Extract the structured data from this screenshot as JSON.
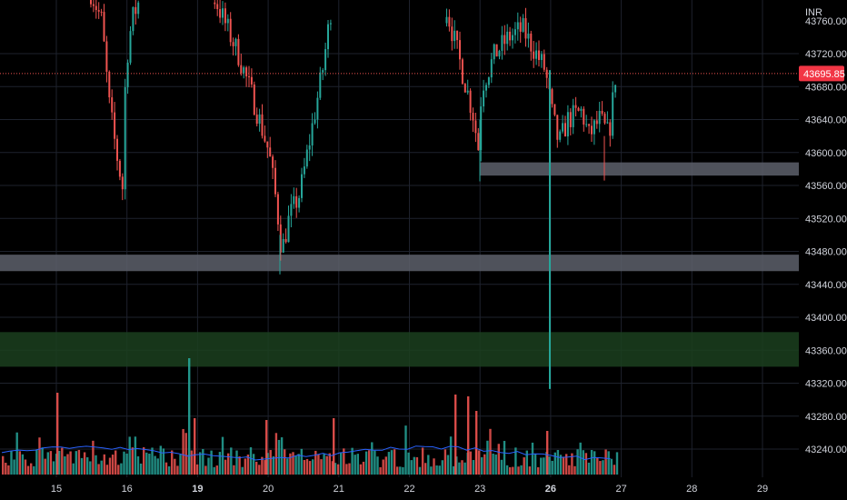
{
  "chart_data": {
    "type": "candlestick",
    "currency": "INR",
    "last_price": "43695.85",
    "ylim": [
      43200,
      43780
    ],
    "y_ticks": [
      "43720.00",
      "43680.00",
      "43640.00",
      "43600.00",
      "43560.00",
      "43520.00",
      "43480.00",
      "43440.00",
      "43400.00",
      "43360.00",
      "43320.00",
      "43280.00",
      "43240.00"
    ],
    "y_tick_values": [
      43720,
      43680,
      43640,
      43600,
      43560,
      43520,
      43480,
      43440,
      43400,
      43360,
      43320,
      43280,
      43240
    ],
    "top_partial_tick": "43760.00",
    "x_ticks": [
      {
        "label": "15",
        "bold": false,
        "day": 0
      },
      {
        "label": "16",
        "bold": false,
        "day": 1
      },
      {
        "label": "19",
        "bold": true,
        "day": 2
      },
      {
        "label": "20",
        "bold": false,
        "day": 3
      },
      {
        "label": "21",
        "bold": false,
        "day": 4
      },
      {
        "label": "22",
        "bold": false,
        "day": 5
      },
      {
        "label": "23",
        "bold": false,
        "day": 6
      },
      {
        "label": "26",
        "bold": true,
        "day": 7
      },
      {
        "label": "27",
        "bold": false,
        "day": 8
      },
      {
        "label": "28",
        "bold": false,
        "day": 9
      },
      {
        "label": "29",
        "bold": false,
        "day": 10
      }
    ],
    "zones": [
      {
        "name": "resistance-zone-upper",
        "from": 43572,
        "to": 43588,
        "color": "#5d606b",
        "start_day": 6.0
      },
      {
        "name": "support-zone-middle",
        "from": 43456,
        "to": 43476,
        "color": "#5d606b",
        "start_day": -0.8
      },
      {
        "name": "demand-zone-green",
        "from": 43340,
        "to": 43382,
        "color": "#1b3f1e",
        "start_day": -0.8
      }
    ],
    "colors": {
      "up": "#26a69a",
      "down": "#ef5350",
      "ma": "#2962ff",
      "grid": "#1e222d",
      "last_price_line": "#ef5350"
    }
  }
}
